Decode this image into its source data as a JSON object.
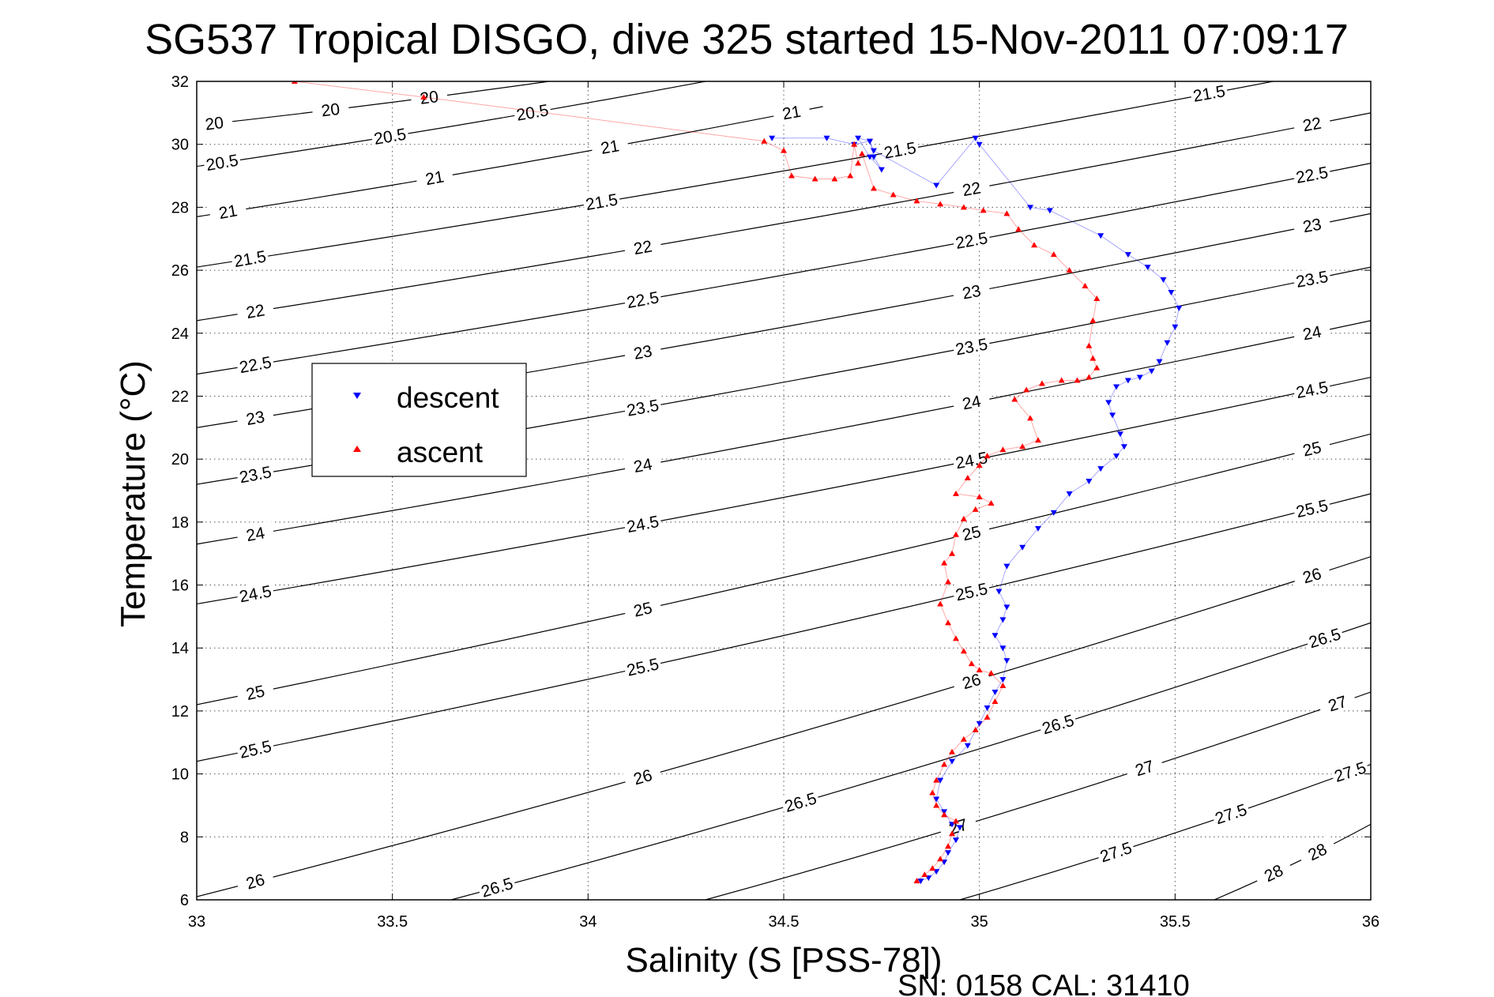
{
  "chart_data": {
    "type": "scatter",
    "title": "SG537 Tropical DISGO, dive 325 started 15-Nov-2011 07:09:17",
    "xlabel": "Salinity (S [PSS-78])",
    "ylabel": "Temperature (°C)",
    "xlim": [
      33,
      36
    ],
    "ylim": [
      6,
      32
    ],
    "xticks": [
      33,
      33.5,
      34,
      34.5,
      35,
      35.5,
      36
    ],
    "xtick_labels": [
      "33",
      "33.5",
      "34",
      "34.5",
      "35",
      "35.5",
      "36"
    ],
    "yticks": [
      6,
      8,
      10,
      12,
      14,
      16,
      18,
      20,
      22,
      24,
      26,
      28,
      30,
      32
    ],
    "ytick_labels": [
      "6",
      "8",
      "10",
      "12",
      "14",
      "16",
      "18",
      "20",
      "22",
      "24",
      "26",
      "28",
      "30",
      "32"
    ],
    "grid": true,
    "legend_position": "left",
    "footer": "SN: 0158  CAL: 31410",
    "density_contours": [
      {
        "level": 20,
        "label": "20",
        "x": [
          33,
          33.9
        ],
        "y": [
          30.6,
          32
        ]
      },
      {
        "level": 20.5,
        "label": "20.5",
        "x": [
          33,
          34.3
        ],
        "y": [
          29.3,
          32
        ]
      },
      {
        "level": 21,
        "label": "21",
        "x": [
          33,
          34.6
        ],
        "y": [
          27.7,
          31.2
        ]
      },
      {
        "level": 21.5,
        "label": "21.5",
        "x": [
          33,
          36
        ],
        "y": [
          26.1,
          32.6
        ]
      },
      {
        "level": 22,
        "label": "22",
        "x": [
          33,
          36
        ],
        "y": [
          24.4,
          31.0
        ]
      },
      {
        "level": 22.5,
        "label": "22.5",
        "x": [
          33,
          36
        ],
        "y": [
          22.7,
          29.4
        ]
      },
      {
        "level": 23,
        "label": "23",
        "x": [
          33,
          36
        ],
        "y": [
          21.0,
          27.8
        ]
      },
      {
        "level": 23.5,
        "label": "23.5",
        "x": [
          33,
          36
        ],
        "y": [
          19.2,
          26.1
        ]
      },
      {
        "level": 24,
        "label": "24",
        "x": [
          33,
          36
        ],
        "y": [
          17.3,
          24.4
        ]
      },
      {
        "level": 24.5,
        "label": "24.5",
        "x": [
          33,
          36
        ],
        "y": [
          15.4,
          22.6
        ]
      },
      {
        "level": 25,
        "label": "25",
        "x": [
          33,
          36
        ],
        "y": [
          12.2,
          20.8
        ]
      },
      {
        "level": 25.5,
        "label": "25.5",
        "x": [
          33,
          36
        ],
        "y": [
          10.4,
          18.9
        ]
      },
      {
        "level": 26,
        "label": "26",
        "x": [
          33,
          36
        ],
        "y": [
          6.1,
          16.9
        ]
      },
      {
        "level": 26.5,
        "label": "26.5",
        "x": [
          33.65,
          36
        ],
        "y": [
          6,
          14.8
        ]
      },
      {
        "level": 27,
        "label": "27",
        "x": [
          34.3,
          36
        ],
        "y": [
          6,
          12.6
        ]
      },
      {
        "level": 27.5,
        "label": "27.5",
        "x": [
          34.95,
          36
        ],
        "y": [
          6,
          10.3
        ]
      },
      {
        "level": 28,
        "label": "28",
        "x": [
          35.6,
          36
        ],
        "y": [
          6,
          8.4
        ]
      }
    ],
    "series": [
      {
        "name": "descent",
        "color": "#0000ff",
        "marker": "triangle-down",
        "x": [
          34.47,
          34.61,
          34.68,
          34.72,
          34.73,
          34.75,
          34.72,
          34.69,
          34.72,
          34.73,
          34.89,
          34.99,
          35.0,
          35.13,
          35.18,
          35.31,
          35.38,
          35.43,
          35.47,
          35.49,
          35.51,
          35.5,
          35.48,
          35.46,
          35.44,
          35.41,
          35.38,
          35.35,
          35.33,
          35.34,
          35.36,
          35.37,
          35.35,
          35.31,
          35.28,
          35.23,
          35.19,
          35.15,
          35.11,
          35.07,
          35.05,
          35.07,
          35.06,
          35.04,
          35.06,
          35.07,
          35.06,
          35.04,
          35.02,
          35.0,
          34.97,
          34.93,
          34.9,
          34.89,
          34.91,
          34.93,
          34.95,
          34.94,
          34.92,
          34.91,
          34.89,
          34.87,
          34.85
        ],
        "y": [
          30.2,
          30.2,
          30.0,
          30.1,
          29.6,
          29.2,
          29.6,
          30.2,
          30.1,
          29.8,
          28.7,
          30.2,
          30.0,
          28.0,
          27.9,
          27.1,
          26.5,
          26.1,
          25.7,
          25.3,
          24.8,
          24.2,
          23.7,
          23.1,
          22.8,
          22.6,
          22.5,
          22.3,
          21.8,
          21.4,
          20.8,
          20.4,
          20.1,
          19.7,
          19.3,
          18.9,
          18.3,
          17.8,
          17.2,
          16.6,
          15.8,
          15.3,
          14.9,
          14.4,
          14.0,
          13.6,
          13.0,
          12.6,
          12.1,
          11.6,
          10.9,
          10.4,
          9.8,
          9.2,
          8.8,
          8.4,
          8.3,
          7.9,
          7.5,
          7.2,
          6.9,
          6.7,
          6.6
        ]
      },
      {
        "name": "ascent",
        "color": "#ff0000",
        "marker": "triangle-up",
        "x": [
          33.25,
          33.58,
          34.45,
          34.5,
          34.52,
          34.58,
          34.63,
          34.67,
          34.68,
          34.69,
          34.7,
          34.73,
          34.78,
          34.84,
          34.9,
          34.96,
          35.01,
          35.07,
          35.1,
          35.14,
          35.19,
          35.23,
          35.27,
          35.3,
          35.29,
          35.28,
          35.29,
          35.3,
          35.28,
          35.25,
          35.21,
          35.16,
          35.12,
          35.09,
          35.13,
          35.15,
          35.11,
          35.06,
          35.02,
          35.0,
          34.97,
          34.94,
          35.0,
          35.03,
          34.99,
          34.96,
          34.94,
          34.93,
          34.91,
          34.92,
          34.9,
          34.92,
          34.94,
          34.96,
          34.98,
          35.0,
          35.03,
          35.06,
          35.04,
          35.02,
          34.99,
          34.96,
          34.93,
          34.91,
          34.89,
          34.88,
          34.89,
          34.91,
          34.94,
          34.93,
          34.92,
          34.9,
          34.88,
          34.86,
          34.84
        ],
        "y": [
          32.0,
          31.5,
          30.1,
          29.8,
          29.0,
          28.9,
          28.9,
          29.0,
          30.0,
          29.4,
          29.7,
          28.6,
          28.4,
          28.2,
          28.1,
          28.0,
          27.9,
          27.8,
          27.3,
          26.8,
          26.5,
          26.0,
          25.5,
          25.1,
          24.4,
          23.6,
          23.2,
          22.9,
          22.6,
          22.5,
          22.5,
          22.4,
          22.2,
          21.9,
          21.3,
          20.6,
          20.4,
          20.3,
          20.1,
          19.8,
          19.4,
          18.9,
          18.8,
          18.6,
          18.4,
          18.1,
          17.6,
          17.0,
          16.7,
          16.1,
          15.4,
          14.8,
          14.3,
          13.9,
          13.5,
          13.3,
          13.2,
          12.8,
          12.3,
          11.8,
          11.4,
          11.1,
          10.7,
          10.3,
          9.8,
          9.4,
          9.0,
          8.7,
          8.5,
          8.1,
          7.7,
          7.3,
          7.0,
          6.8,
          6.6
        ]
      }
    ]
  }
}
